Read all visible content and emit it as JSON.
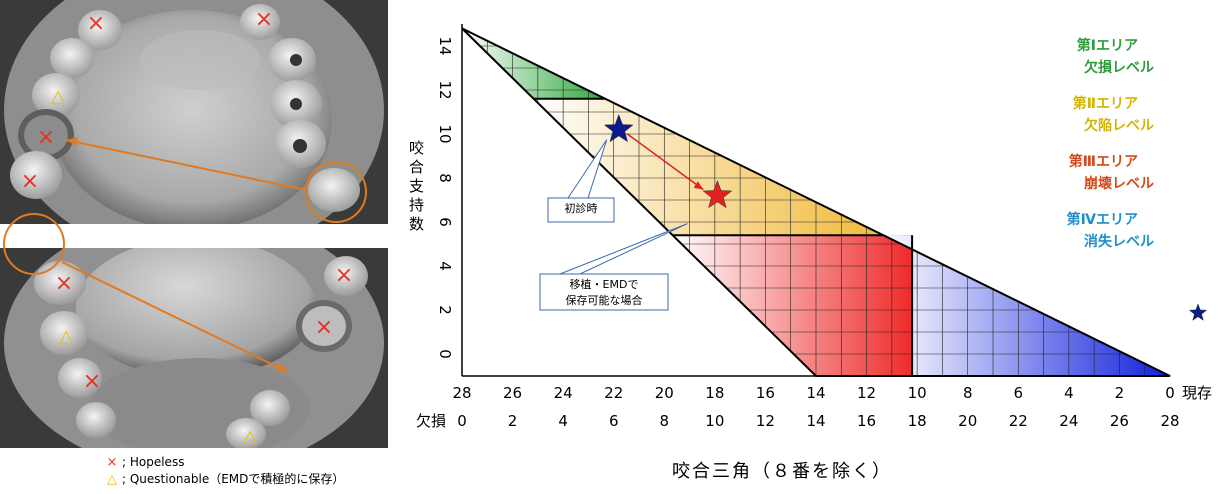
{
  "photos": {
    "upper_label": "",
    "marks_upper": [
      {
        "kind": "hopeless"
      },
      {
        "kind": "hopeless"
      },
      {
        "kind": "questionable"
      },
      {
        "kind": "hopeless"
      },
      {
        "kind": "hopeless"
      }
    ],
    "marks_lower": [
      {
        "kind": "hopeless"
      },
      {
        "kind": "hopeless"
      },
      {
        "kind": "questionable"
      },
      {
        "kind": "hopeless"
      },
      {
        "kind": "hopeless"
      },
      {
        "kind": "questionable"
      }
    ]
  },
  "legend": {
    "hopeless_symbol": "×",
    "hopeless_text": "; Hopeless",
    "questionable_symbol": "△",
    "questionable_text": "; Questionable（EMDで積極的に保存）"
  },
  "caption": "咬合三角（８番を除く）",
  "chart_data": {
    "type": "scatter",
    "title": "",
    "ylabel": "咬合支持数",
    "x_top_label": "現存",
    "x_bottom_label": "欠損",
    "x_top_ticks": [
      28,
      26,
      24,
      22,
      20,
      18,
      16,
      14,
      12,
      10,
      8,
      6,
      4,
      2,
      0
    ],
    "x_bottom_ticks": [
      0,
      2,
      4,
      6,
      8,
      10,
      12,
      14,
      16,
      18,
      20,
      22,
      24,
      26,
      28
    ],
    "y_ticks": [
      0,
      2,
      4,
      6,
      8,
      10,
      12,
      14
    ],
    "xlim": [
      28,
      0
    ],
    "ylim": [
      -1,
      15
    ],
    "areas": [
      {
        "name": "第Ⅰエリア",
        "level": "欠損レベル",
        "color": "#2e9b3c"
      },
      {
        "name": "第Ⅱエリア",
        "level": "欠陥レベル",
        "color": "#d4b400"
      },
      {
        "name": "第Ⅲエリア",
        "level": "崩壊レベル",
        "color": "#d4491a"
      },
      {
        "name": "第Ⅳエリア",
        "level": "消失レベル",
        "color": "#1f8fc9"
      }
    ],
    "points": [
      {
        "label": "初診時",
        "x_present": 21.8,
        "support": 10.2,
        "color": "#0b1a8c"
      },
      {
        "label": "移植・EMDで\n保存可能な場合",
        "x_present": 17.9,
        "support": 7.2,
        "color": "#e32020"
      }
    ],
    "arrow": {
      "from": "初診時",
      "to": "移植・EMDで\n保存可能な場合",
      "color": "#e32020"
    },
    "current_marker": {
      "color": "#0b1a8c"
    }
  }
}
